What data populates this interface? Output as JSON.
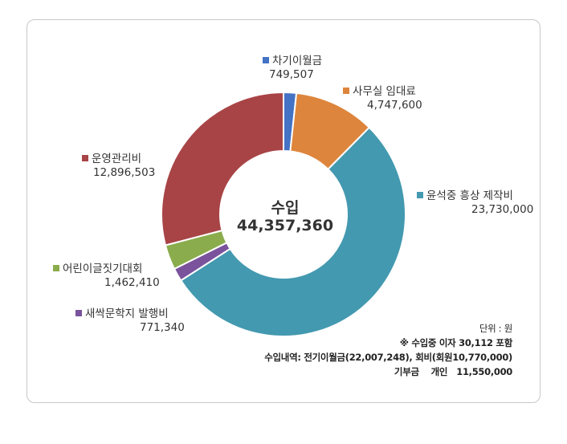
{
  "chart_data": {
    "type": "pie",
    "donut": true,
    "center_title": "수입",
    "center_total": "44,357,360",
    "slices": [
      {
        "name": "차기이월금",
        "value": 749507,
        "label_value": "749,507",
        "color": "#4472c4"
      },
      {
        "name": "사무실 임대료",
        "value": 4747600,
        "label_value": "4,747,600",
        "color": "#dd853c"
      },
      {
        "name": "윤석중 흥상 제작비",
        "value": 23730000,
        "label_value": "23,730,000",
        "color": "#4399b0"
      },
      {
        "name": "새싹문학지 발행비",
        "value": 771340,
        "label_value": "771,340",
        "color": "#7a539c"
      },
      {
        "name": "어린이글짓기대회",
        "value": 1462410,
        "label_value": "1,462,410",
        "color": "#8aac4c"
      },
      {
        "name": "운영관리비",
        "value": 12896503,
        "label_value": "12,896,503",
        "color": "#a84446"
      }
    ]
  },
  "notes": {
    "unit": "단위 : 원",
    "line1": "※ 수입중 이자 30,112 포함",
    "line2": "수입내역: 전기이월금(22,007,248), 회비(회원10,770,000)",
    "line3": "기부금    개인   11,550,000"
  }
}
